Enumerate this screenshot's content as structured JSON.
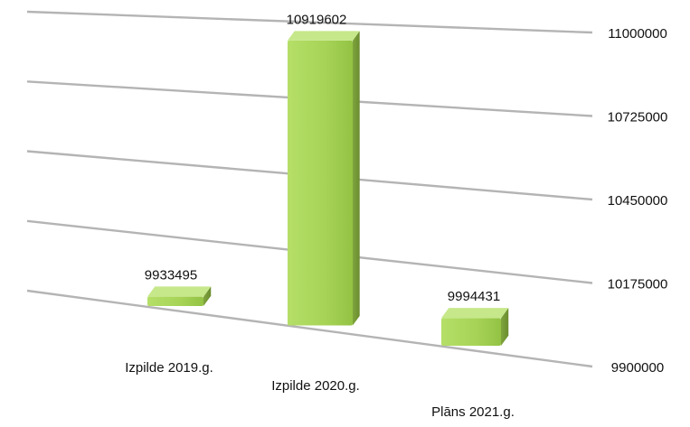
{
  "chart_data": {
    "type": "bar",
    "style": "3d",
    "categories": [
      "Izpilde 2019.g.",
      "Izpilde 2020.g.",
      "Plāns 2021.g."
    ],
    "values": [
      9933495,
      10919602,
      9994431
    ],
    "data_labels": [
      "9933495",
      "10919602",
      "9994431"
    ],
    "y_ticks": [
      "11000000",
      "10725000",
      "10450000",
      "10175000",
      "9900000"
    ],
    "ylim": [
      9900000,
      11000000
    ],
    "grid": true,
    "legend": false,
    "colors": {
      "bar_front": "#a9d65a",
      "bar_top": "#c6e88a",
      "bar_side": "#7ea33c",
      "grid": "#b4b4b4"
    }
  }
}
